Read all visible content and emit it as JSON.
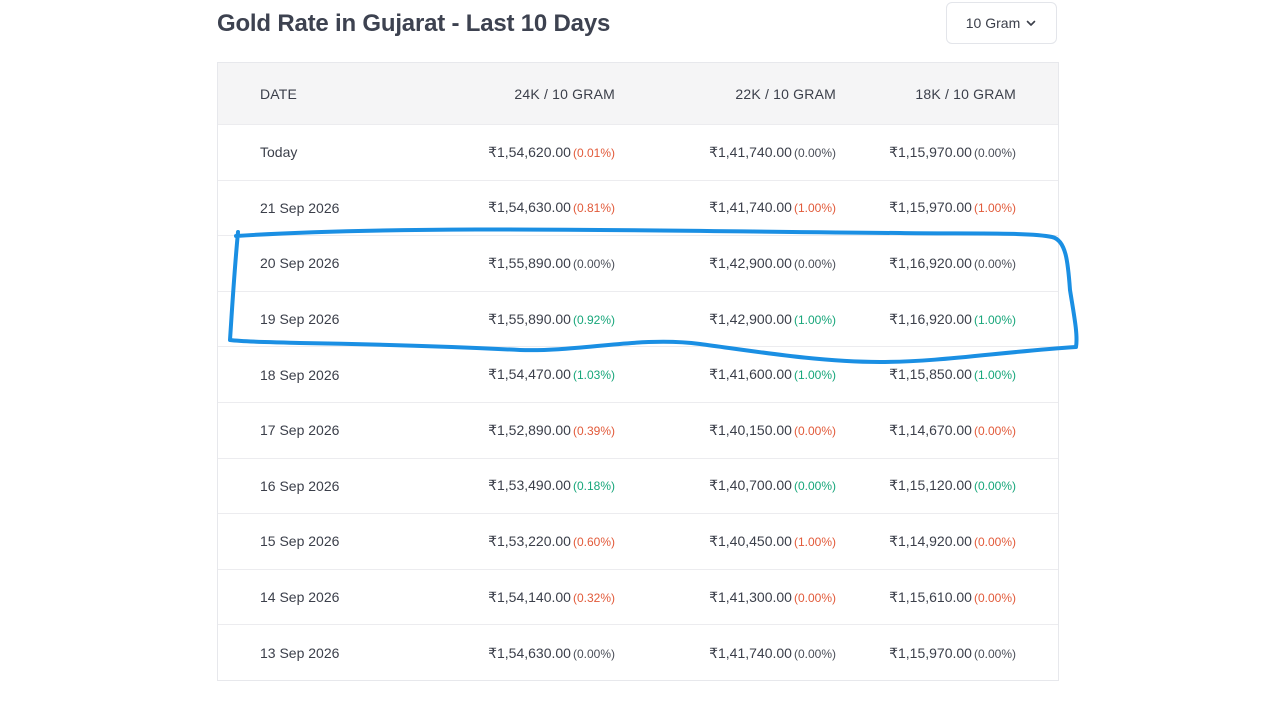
{
  "header": {
    "title": "Gold Rate in Gujarat - Last 10 Days",
    "unit_select": {
      "value": "10 Gram",
      "icon": "chevron-down-icon"
    }
  },
  "table": {
    "columns": [
      "DATE",
      "24K / 10 GRAM",
      "22K / 10 GRAM",
      "18K / 10 GRAM"
    ],
    "rows": [
      {
        "date": "Today",
        "k24": {
          "price": "₹1,54,620.00",
          "change": "(0.01%)",
          "dir": "up"
        },
        "k22": {
          "price": "₹1,41,740.00",
          "change": "(0.00%)",
          "dir": "flat"
        },
        "k18": {
          "price": "₹1,15,970.00",
          "change": "(0.00%)",
          "dir": "flat"
        }
      },
      {
        "date": "21 Sep 2026",
        "k24": {
          "price": "₹1,54,630.00",
          "change": "(0.81%)",
          "dir": "up"
        },
        "k22": {
          "price": "₹1,41,740.00",
          "change": "(1.00%)",
          "dir": "up"
        },
        "k18": {
          "price": "₹1,15,970.00",
          "change": "(1.00%)",
          "dir": "up"
        }
      },
      {
        "date": "20 Sep 2026",
        "k24": {
          "price": "₹1,55,890.00",
          "change": "(0.00%)",
          "dir": "flat"
        },
        "k22": {
          "price": "₹1,42,900.00",
          "change": "(0.00%)",
          "dir": "flat"
        },
        "k18": {
          "price": "₹1,16,920.00",
          "change": "(0.00%)",
          "dir": "flat"
        }
      },
      {
        "date": "19 Sep 2026",
        "k24": {
          "price": "₹1,55,890.00",
          "change": "(0.92%)",
          "dir": "down"
        },
        "k22": {
          "price": "₹1,42,900.00",
          "change": "(1.00%)",
          "dir": "down"
        },
        "k18": {
          "price": "₹1,16,920.00",
          "change": "(1.00%)",
          "dir": "down"
        }
      },
      {
        "date": "18 Sep 2026",
        "k24": {
          "price": "₹1,54,470.00",
          "change": "(1.03%)",
          "dir": "down"
        },
        "k22": {
          "price": "₹1,41,600.00",
          "change": "(1.00%)",
          "dir": "down"
        },
        "k18": {
          "price": "₹1,15,850.00",
          "change": "(1.00%)",
          "dir": "down"
        }
      },
      {
        "date": "17 Sep 2026",
        "k24": {
          "price": "₹1,52,890.00",
          "change": "(0.39%)",
          "dir": "up"
        },
        "k22": {
          "price": "₹1,40,150.00",
          "change": "(0.00%)",
          "dir": "up"
        },
        "k18": {
          "price": "₹1,14,670.00",
          "change": "(0.00%)",
          "dir": "up"
        }
      },
      {
        "date": "16 Sep 2026",
        "k24": {
          "price": "₹1,53,490.00",
          "change": "(0.18%)",
          "dir": "down"
        },
        "k22": {
          "price": "₹1,40,700.00",
          "change": "(0.00%)",
          "dir": "down"
        },
        "k18": {
          "price": "₹1,15,120.00",
          "change": "(0.00%)",
          "dir": "down"
        }
      },
      {
        "date": "15 Sep 2026",
        "k24": {
          "price": "₹1,53,220.00",
          "change": "(0.60%)",
          "dir": "up"
        },
        "k22": {
          "price": "₹1,40,450.00",
          "change": "(1.00%)",
          "dir": "up"
        },
        "k18": {
          "price": "₹1,14,920.00",
          "change": "(0.00%)",
          "dir": "up"
        }
      },
      {
        "date": "14 Sep 2026",
        "k24": {
          "price": "₹1,54,140.00",
          "change": "(0.32%)",
          "dir": "up"
        },
        "k22": {
          "price": "₹1,41,300.00",
          "change": "(0.00%)",
          "dir": "up"
        },
        "k18": {
          "price": "₹1,15,610.00",
          "change": "(0.00%)",
          "dir": "up"
        }
      },
      {
        "date": "13 Sep 2026",
        "k24": {
          "price": "₹1,54,630.00",
          "change": "(0.00%)",
          "dir": "flat"
        },
        "k22": {
          "price": "₹1,41,740.00",
          "change": "(0.00%)",
          "dir": "flat"
        },
        "k18": {
          "price": "₹1,15,970.00",
          "change": "(0.00%)",
          "dir": "flat"
        }
      }
    ]
  },
  "colors": {
    "increase": "#e25a3a",
    "decrease": "#17a67a",
    "unchanged": "#4a4e58",
    "annotation": "#1a8fe3"
  },
  "annotation": {
    "shape": "hand-drawn-outline",
    "covers_dates": [
      "20 Sep 2026",
      "19 Sep 2026"
    ]
  }
}
